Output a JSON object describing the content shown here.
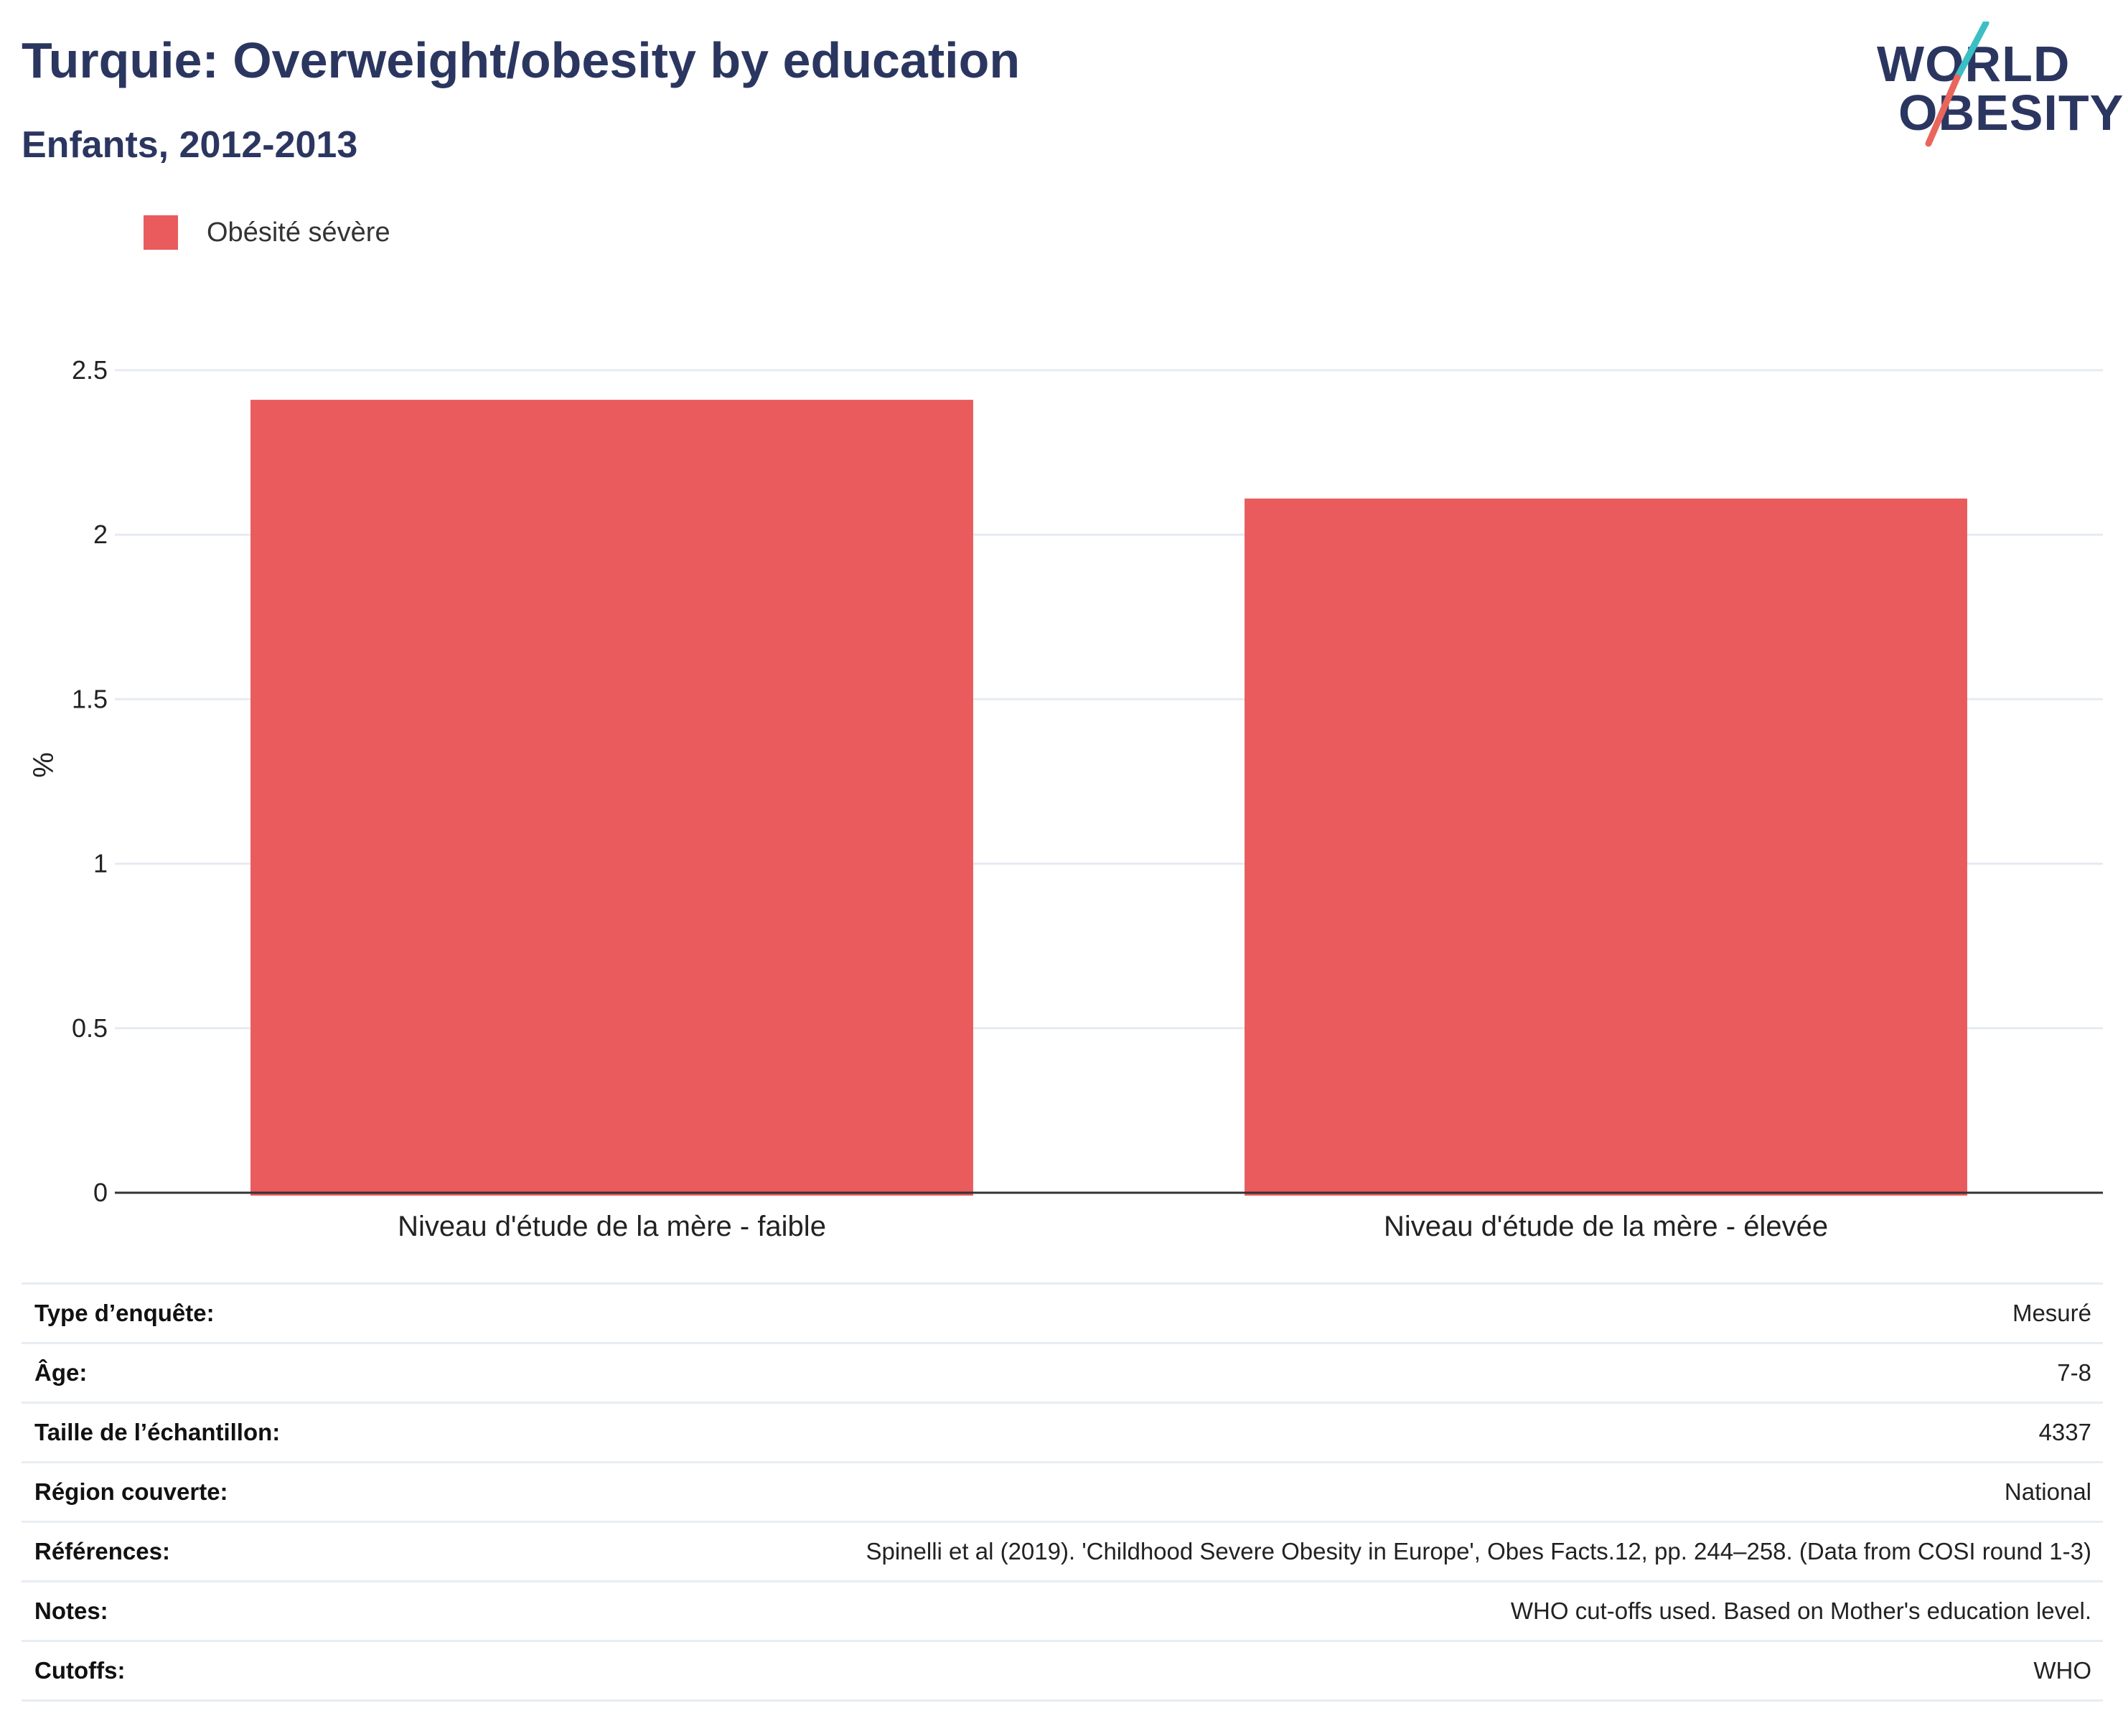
{
  "header": {
    "title": "Turquie: Overweight/obesity by education",
    "subtitle": "Enfants, 2012-2013"
  },
  "logo": {
    "line1": "WORLD",
    "line2": "OBESITY",
    "colors": {
      "text": "#2b3660",
      "slash_top": "#3bbfc4",
      "slash_bottom": "#e9665c"
    }
  },
  "colors": {
    "bar": "#e95b5c",
    "title": "#2b3660",
    "grid": "#e6ebf2",
    "axis": "#333333"
  },
  "chart_data": {
    "type": "bar",
    "categories": [
      "Niveau d'étude de la mère - faible",
      "Niveau d'étude de la mère - élevée"
    ],
    "series": [
      {
        "name": "Obésité sévère",
        "values": [
          2.41,
          2.11
        ],
        "color": "#e95b5c"
      }
    ],
    "ylabel": "%",
    "ylim": [
      0,
      2.6
    ],
    "yticks": [
      0,
      0.5,
      1,
      1.5,
      2,
      2.5
    ],
    "ytick_labels": [
      "0",
      "0.5",
      "1",
      "1.5",
      "2",
      "2.5"
    ],
    "grid": true,
    "legend_position": "top-left"
  },
  "meta": [
    {
      "key": "Type d’enquête:",
      "value": "Mesuré"
    },
    {
      "key": "Âge:",
      "value": "7-8"
    },
    {
      "key": "Taille de l’échantillon:",
      "value": "4337"
    },
    {
      "key": "Région couverte:",
      "value": "National"
    },
    {
      "key": "Références:",
      "value": "Spinelli et al (2019). 'Childhood Severe Obesity in Europe', Obes Facts.12, pp. 244–258. (Data from COSI round 1-3)"
    },
    {
      "key": "Notes:",
      "value": "WHO cut-offs used. Based on Mother's education level."
    },
    {
      "key": "Cutoffs:",
      "value": "WHO"
    }
  ]
}
